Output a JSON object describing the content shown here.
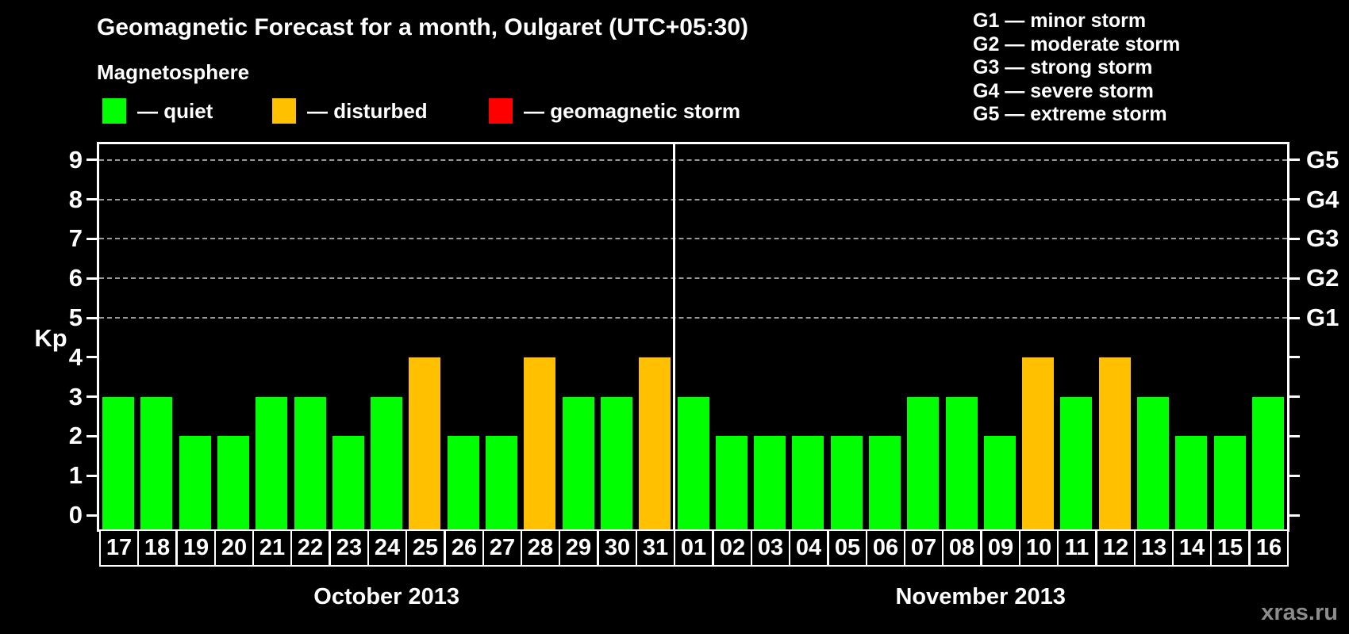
{
  "title": "Geomagnetic Forecast for a month, Oulgaret (UTC+05:30)",
  "subtitle": "Magnetosphere",
  "dash": "—",
  "legend": {
    "items": [
      {
        "status": "quiet",
        "label": "quiet",
        "color": "#00ff00"
      },
      {
        "status": "disturbed",
        "label": "disturbed",
        "color": "#ffc000"
      },
      {
        "status": "storm",
        "label": "geomagnetic storm",
        "color": "#ff0000"
      }
    ]
  },
  "g_legend": [
    {
      "code": "G1",
      "label": "minor storm"
    },
    {
      "code": "G2",
      "label": "moderate storm"
    },
    {
      "code": "G3",
      "label": "strong storm"
    },
    {
      "code": "G4",
      "label": "severe storm"
    },
    {
      "code": "G5",
      "label": "extreme storm"
    }
  ],
  "watermark": "xras.ru",
  "chart_data": {
    "type": "bar",
    "ylabel": "Kp",
    "ylim": [
      0,
      9
    ],
    "y_ticks": [
      0,
      1,
      2,
      3,
      4,
      5,
      6,
      7,
      8,
      9
    ],
    "gridlines_at": [
      5,
      6,
      7,
      8,
      9
    ],
    "grid_style": "dashed",
    "right_axis_labels": [
      {
        "kp": 5,
        "label": "G1"
      },
      {
        "kp": 6,
        "label": "G2"
      },
      {
        "kp": 7,
        "label": "G3"
      },
      {
        "kp": 8,
        "label": "G4"
      },
      {
        "kp": 9,
        "label": "G5"
      }
    ],
    "status_colors": {
      "quiet": "#00ff00",
      "disturbed": "#ffc000",
      "storm": "#ff0000"
    },
    "groups": [
      {
        "label": "October 2013",
        "days": [
          "17",
          "18",
          "19",
          "20",
          "21",
          "22",
          "23",
          "24",
          "25",
          "26",
          "27",
          "28",
          "29",
          "30",
          "31"
        ],
        "values": [
          3,
          3,
          2,
          2,
          3,
          3,
          2,
          3,
          4,
          2,
          2,
          4,
          3,
          3,
          4
        ],
        "status": [
          "quiet",
          "quiet",
          "quiet",
          "quiet",
          "quiet",
          "quiet",
          "quiet",
          "quiet",
          "disturbed",
          "quiet",
          "quiet",
          "disturbed",
          "quiet",
          "quiet",
          "disturbed"
        ]
      },
      {
        "label": "November 2013",
        "days": [
          "01",
          "02",
          "03",
          "04",
          "05",
          "06",
          "07",
          "08",
          "09",
          "10",
          "11",
          "12",
          "13",
          "14",
          "15",
          "16"
        ],
        "values": [
          3,
          2,
          2,
          2,
          2,
          2,
          3,
          3,
          2,
          4,
          3,
          4,
          3,
          2,
          2,
          3
        ],
        "status": [
          "quiet",
          "quiet",
          "quiet",
          "quiet",
          "quiet",
          "quiet",
          "quiet",
          "quiet",
          "quiet",
          "disturbed",
          "quiet",
          "disturbed",
          "quiet",
          "quiet",
          "quiet",
          "quiet"
        ]
      }
    ]
  }
}
